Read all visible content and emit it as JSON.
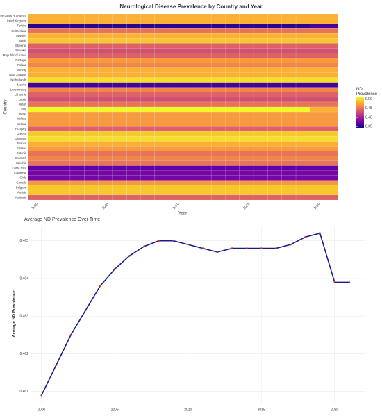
{
  "chart_data": [
    {
      "type": "heatmap",
      "title": "Neurological Disease Prevalence by Country and Year",
      "x_label": "Year",
      "y_label": "Country",
      "colorbar_title": "ND Prevalence",
      "x": [
        2000,
        2001,
        2002,
        2003,
        2004,
        2005,
        2006,
        2007,
        2008,
        2009,
        2010,
        2011,
        2012,
        2013,
        2014,
        2015,
        2016,
        2017,
        2018,
        2019,
        2020,
        2021
      ],
      "y": [
        "United States of America",
        "United Kingdom",
        "Turkiye",
        "Switzerland",
        "Sweden",
        "Spain",
        "Slovenia",
        "Slovakia",
        "Republic of Korea",
        "Portugal",
        "Poland",
        "Norway",
        "New Zealand",
        "Netherlands",
        "Mexico",
        "Luxembourg",
        "Lithuania",
        "Latvia",
        "Japan",
        "Italy",
        "Israel",
        "Ireland",
        "Iceland",
        "Hungary",
        "Greece",
        "Germany",
        "France",
        "Finland",
        "Estonia",
        "Denmark",
        "Czechia",
        "Costa Rica",
        "Colombia",
        "Chile",
        "Canada",
        "Belgium",
        "Austria",
        "Australia"
      ],
      "z": [
        [
          0.48,
          0.48,
          0.48,
          0.48,
          0.48,
          0.48,
          0.48,
          0.48,
          0.48,
          0.48,
          0.48,
          0.48,
          0.48,
          0.48,
          0.48,
          0.48,
          0.48,
          0.48,
          0.48,
          0.48,
          0.48,
          0.48
        ],
        [
          0.48,
          0.48,
          0.48,
          0.48,
          0.48,
          0.48,
          0.48,
          0.48,
          0.48,
          0.48,
          0.48,
          0.48,
          0.48,
          0.48,
          0.48,
          0.48,
          0.48,
          0.48,
          0.48,
          0.48,
          0.48,
          0.48
        ],
        [
          0.35,
          0.35,
          0.35,
          0.35,
          0.35,
          0.35,
          0.35,
          0.35,
          0.35,
          0.35,
          0.35,
          0.35,
          0.35,
          0.35,
          0.35,
          0.35,
          0.35,
          0.35,
          0.35,
          0.35,
          0.36,
          0.36
        ],
        [
          0.45,
          0.45,
          0.45,
          0.45,
          0.45,
          0.45,
          0.45,
          0.45,
          0.45,
          0.45,
          0.45,
          0.45,
          0.45,
          0.45,
          0.45,
          0.45,
          0.45,
          0.45,
          0.45,
          0.45,
          0.45,
          0.45
        ],
        [
          0.48,
          0.48,
          0.48,
          0.48,
          0.48,
          0.48,
          0.48,
          0.48,
          0.48,
          0.48,
          0.48,
          0.48,
          0.48,
          0.48,
          0.48,
          0.48,
          0.48,
          0.48,
          0.48,
          0.48,
          0.48,
          0.48
        ],
        [
          0.49,
          0.49,
          0.49,
          0.49,
          0.49,
          0.49,
          0.49,
          0.49,
          0.49,
          0.49,
          0.49,
          0.49,
          0.49,
          0.49,
          0.49,
          0.49,
          0.49,
          0.49,
          0.49,
          0.49,
          0.49,
          0.49
        ],
        [
          0.44,
          0.44,
          0.44,
          0.44,
          0.44,
          0.44,
          0.44,
          0.44,
          0.44,
          0.44,
          0.44,
          0.44,
          0.44,
          0.44,
          0.44,
          0.44,
          0.44,
          0.44,
          0.44,
          0.44,
          0.44,
          0.44
        ],
        [
          0.43,
          0.43,
          0.43,
          0.43,
          0.43,
          0.43,
          0.43,
          0.43,
          0.43,
          0.43,
          0.43,
          0.43,
          0.43,
          0.43,
          0.43,
          0.43,
          0.43,
          0.43,
          0.43,
          0.43,
          0.43,
          0.43
        ],
        [
          0.44,
          0.44,
          0.44,
          0.44,
          0.44,
          0.44,
          0.44,
          0.44,
          0.44,
          0.44,
          0.44,
          0.44,
          0.44,
          0.44,
          0.44,
          0.44,
          0.44,
          0.44,
          0.44,
          0.44,
          0.44,
          0.44
        ],
        [
          0.47,
          0.47,
          0.47,
          0.47,
          0.47,
          0.47,
          0.47,
          0.47,
          0.47,
          0.47,
          0.47,
          0.47,
          0.47,
          0.47,
          0.47,
          0.47,
          0.47,
          0.47,
          0.47,
          0.47,
          0.47,
          0.47
        ],
        [
          0.46,
          0.46,
          0.46,
          0.46,
          0.46,
          0.46,
          0.46,
          0.46,
          0.46,
          0.46,
          0.46,
          0.46,
          0.46,
          0.46,
          0.46,
          0.46,
          0.46,
          0.46,
          0.46,
          0.46,
          0.46,
          0.46
        ],
        [
          0.48,
          0.48,
          0.48,
          0.48,
          0.48,
          0.48,
          0.48,
          0.48,
          0.48,
          0.48,
          0.48,
          0.48,
          0.48,
          0.48,
          0.48,
          0.48,
          0.48,
          0.48,
          0.48,
          0.48,
          0.48,
          0.48
        ],
        [
          0.48,
          0.48,
          0.48,
          0.48,
          0.48,
          0.48,
          0.48,
          0.48,
          0.48,
          0.48,
          0.48,
          0.48,
          0.48,
          0.48,
          0.48,
          0.48,
          0.48,
          0.48,
          0.48,
          0.48,
          0.48,
          0.48
        ],
        [
          0.5,
          0.5,
          0.5,
          0.5,
          0.5,
          0.5,
          0.5,
          0.5,
          0.5,
          0.5,
          0.5,
          0.5,
          0.5,
          0.5,
          0.5,
          0.5,
          0.5,
          0.5,
          0.5,
          0.5,
          0.5,
          0.5
        ],
        [
          0.36,
          0.36,
          0.36,
          0.36,
          0.36,
          0.36,
          0.36,
          0.36,
          0.36,
          0.36,
          0.36,
          0.36,
          0.36,
          0.36,
          0.36,
          0.36,
          0.36,
          0.36,
          0.36,
          0.36,
          0.36,
          0.36
        ],
        [
          0.46,
          0.46,
          0.46,
          0.46,
          0.46,
          0.46,
          0.46,
          0.46,
          0.46,
          0.46,
          0.46,
          0.46,
          0.46,
          0.46,
          0.46,
          0.46,
          0.46,
          0.46,
          0.46,
          0.46,
          0.46,
          0.46
        ],
        [
          0.44,
          0.44,
          0.44,
          0.44,
          0.44,
          0.44,
          0.44,
          0.44,
          0.44,
          0.44,
          0.44,
          0.44,
          0.44,
          0.44,
          0.44,
          0.44,
          0.44,
          0.44,
          0.44,
          0.44,
          0.44,
          0.44
        ],
        [
          0.43,
          0.43,
          0.43,
          0.43,
          0.43,
          0.43,
          0.43,
          0.43,
          0.43,
          0.43,
          0.43,
          0.43,
          0.43,
          0.43,
          0.43,
          0.43,
          0.43,
          0.43,
          0.43,
          0.43,
          0.43,
          0.43
        ],
        [
          0.45,
          0.45,
          0.45,
          0.45,
          0.45,
          0.45,
          0.45,
          0.45,
          0.45,
          0.45,
          0.45,
          0.45,
          0.45,
          0.45,
          0.45,
          0.45,
          0.45,
          0.45,
          0.45,
          0.45,
          0.45,
          0.45
        ],
        [
          0.51,
          0.51,
          0.51,
          0.51,
          0.51,
          0.51,
          0.51,
          0.51,
          0.51,
          0.51,
          0.51,
          0.51,
          0.51,
          0.51,
          0.51,
          0.51,
          0.51,
          0.51,
          0.51,
          0.51,
          0.48,
          0.48
        ],
        [
          0.47,
          0.47,
          0.47,
          0.47,
          0.47,
          0.47,
          0.47,
          0.47,
          0.47,
          0.47,
          0.47,
          0.47,
          0.47,
          0.47,
          0.47,
          0.47,
          0.47,
          0.47,
          0.47,
          0.47,
          0.47,
          0.47
        ],
        [
          0.47,
          0.47,
          0.47,
          0.47,
          0.47,
          0.47,
          0.47,
          0.47,
          0.47,
          0.47,
          0.47,
          0.47,
          0.47,
          0.47,
          0.47,
          0.47,
          0.47,
          0.47,
          0.47,
          0.47,
          0.47,
          0.47
        ],
        [
          0.47,
          0.47,
          0.47,
          0.47,
          0.47,
          0.47,
          0.47,
          0.47,
          0.47,
          0.47,
          0.47,
          0.47,
          0.47,
          0.47,
          0.47,
          0.47,
          0.47,
          0.47,
          0.47,
          0.47,
          0.47,
          0.47
        ],
        [
          0.44,
          0.44,
          0.44,
          0.44,
          0.44,
          0.44,
          0.44,
          0.44,
          0.44,
          0.44,
          0.44,
          0.44,
          0.44,
          0.44,
          0.44,
          0.44,
          0.44,
          0.44,
          0.44,
          0.44,
          0.44,
          0.44
        ],
        [
          0.49,
          0.49,
          0.49,
          0.49,
          0.49,
          0.49,
          0.49,
          0.49,
          0.49,
          0.49,
          0.49,
          0.49,
          0.49,
          0.49,
          0.49,
          0.49,
          0.49,
          0.49,
          0.49,
          0.49,
          0.49,
          0.49
        ],
        [
          0.5,
          0.5,
          0.5,
          0.5,
          0.5,
          0.5,
          0.5,
          0.5,
          0.5,
          0.5,
          0.5,
          0.5,
          0.5,
          0.5,
          0.5,
          0.5,
          0.5,
          0.5,
          0.5,
          0.5,
          0.5,
          0.5
        ],
        [
          0.48,
          0.48,
          0.48,
          0.48,
          0.48,
          0.48,
          0.48,
          0.48,
          0.48,
          0.48,
          0.48,
          0.48,
          0.48,
          0.48,
          0.48,
          0.48,
          0.48,
          0.48,
          0.48,
          0.48,
          0.48,
          0.48
        ],
        [
          0.47,
          0.47,
          0.47,
          0.47,
          0.47,
          0.47,
          0.47,
          0.47,
          0.47,
          0.47,
          0.47,
          0.47,
          0.47,
          0.47,
          0.47,
          0.47,
          0.47,
          0.47,
          0.47,
          0.47,
          0.47,
          0.47
        ],
        [
          0.45,
          0.45,
          0.45,
          0.45,
          0.45,
          0.45,
          0.45,
          0.45,
          0.45,
          0.45,
          0.45,
          0.45,
          0.45,
          0.45,
          0.45,
          0.45,
          0.45,
          0.45,
          0.45,
          0.45,
          0.45,
          0.45
        ],
        [
          0.46,
          0.46,
          0.46,
          0.46,
          0.46,
          0.46,
          0.46,
          0.46,
          0.46,
          0.46,
          0.46,
          0.46,
          0.46,
          0.46,
          0.46,
          0.46,
          0.46,
          0.46,
          0.46,
          0.46,
          0.46,
          0.46
        ],
        [
          0.45,
          0.45,
          0.45,
          0.45,
          0.45,
          0.45,
          0.45,
          0.45,
          0.45,
          0.45,
          0.45,
          0.45,
          0.45,
          0.45,
          0.45,
          0.45,
          0.45,
          0.45,
          0.45,
          0.45,
          0.45,
          0.45
        ],
        [
          0.37,
          0.37,
          0.37,
          0.37,
          0.37,
          0.37,
          0.37,
          0.37,
          0.37,
          0.37,
          0.37,
          0.37,
          0.37,
          0.37,
          0.37,
          0.37,
          0.37,
          0.37,
          0.37,
          0.37,
          0.37,
          0.37
        ],
        [
          0.38,
          0.38,
          0.38,
          0.38,
          0.38,
          0.38,
          0.38,
          0.38,
          0.38,
          0.38,
          0.38,
          0.38,
          0.38,
          0.38,
          0.38,
          0.38,
          0.38,
          0.38,
          0.38,
          0.38,
          0.38,
          0.38
        ],
        [
          0.38,
          0.38,
          0.38,
          0.38,
          0.38,
          0.38,
          0.38,
          0.38,
          0.38,
          0.38,
          0.38,
          0.38,
          0.38,
          0.38,
          0.38,
          0.38,
          0.38,
          0.38,
          0.38,
          0.38,
          0.38,
          0.38
        ],
        [
          0.47,
          0.47,
          0.47,
          0.47,
          0.47,
          0.47,
          0.47,
          0.47,
          0.47,
          0.47,
          0.47,
          0.47,
          0.47,
          0.47,
          0.47,
          0.47,
          0.47,
          0.47,
          0.47,
          0.47,
          0.47,
          0.47
        ],
        [
          0.49,
          0.49,
          0.49,
          0.49,
          0.49,
          0.49,
          0.49,
          0.49,
          0.49,
          0.49,
          0.49,
          0.49,
          0.49,
          0.49,
          0.49,
          0.49,
          0.49,
          0.49,
          0.49,
          0.49,
          0.49,
          0.49
        ],
        [
          0.49,
          0.49,
          0.49,
          0.49,
          0.49,
          0.49,
          0.49,
          0.49,
          0.49,
          0.49,
          0.49,
          0.49,
          0.49,
          0.49,
          0.49,
          0.49,
          0.49,
          0.49,
          0.49,
          0.49,
          0.49,
          0.49
        ],
        [
          0.44,
          0.44,
          0.44,
          0.44,
          0.44,
          0.44,
          0.44,
          0.44,
          0.44,
          0.44,
          0.44,
          0.44,
          0.44,
          0.44,
          0.44,
          0.44,
          0.44,
          0.44,
          0.44,
          0.44,
          0.44,
          0.44
        ]
      ],
      "xlim": [
        1999.5,
        2021.5
      ],
      "xticks": [
        2000,
        2005,
        2010,
        2015,
        2020
      ],
      "clim": [
        0.34,
        0.51
      ],
      "cticks": [
        0.35,
        {
          "value": 0.4,
          "label": "0.40"
        },
        0.45,
        {
          "value": 0.5,
          "label": "0.50"
        }
      ],
      "colorscale": [
        "#0d0887",
        "#6a00a8",
        "#b12a90",
        "#e16462",
        "#fca636",
        "#f0f921"
      ]
    },
    {
      "type": "line",
      "title": "Average ND Prevalence Over Time",
      "y_label": "Average ND Prevalence",
      "x": [
        2000,
        2001,
        2002,
        2003,
        2004,
        2005,
        2006,
        2007,
        2008,
        2009,
        2010,
        2011,
        2012,
        2013,
        2014,
        2015,
        2016,
        2017,
        2018,
        2019,
        2020,
        2021
      ],
      "series": [
        {
          "name": "Average ND Prevalence",
          "color": "#1a1a8c",
          "marker_color": "#c0392b",
          "values": [
            0.4609,
            0.4617,
            0.4625,
            0.46315,
            0.4638,
            0.46425,
            0.4646,
            0.46485,
            0.465,
            0.465,
            0.4649,
            0.4648,
            0.4647,
            0.4648,
            0.4648,
            0.4648,
            0.4648,
            0.4649,
            0.4651,
            0.4652,
            0.4639,
            0.4639
          ]
        }
      ],
      "xlim": [
        1999.3,
        2022.05
      ],
      "xticks": [
        2000,
        2005,
        2010,
        2015,
        2020
      ],
      "ylim": [
        0.4607,
        0.4654
      ],
      "yticks": [
        0.461,
        0.462,
        0.463,
        0.464,
        0.465
      ],
      "grid": true
    }
  ]
}
